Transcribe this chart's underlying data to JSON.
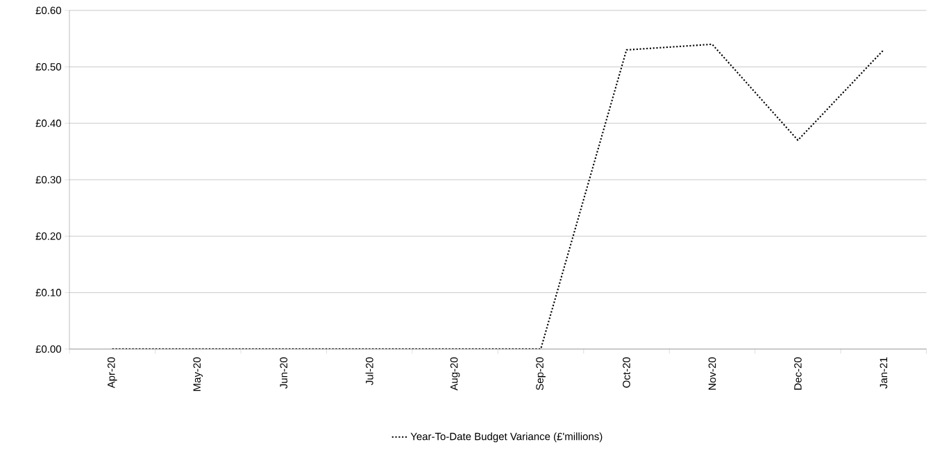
{
  "chart_data": {
    "type": "line",
    "categories": [
      "Apr-20",
      "May-20",
      "Jun-20",
      "Jul-20",
      "Aug-20",
      "Sep-20",
      "Oct-20",
      "Nov-20",
      "Dec-20",
      "Jan-21"
    ],
    "series": [
      {
        "name": "Year-To-Date Budget Variance (£'millions)",
        "color": "#000000",
        "values": [
          0,
          0,
          0,
          0,
          0,
          0,
          0.53,
          0.54,
          0.37,
          0.53
        ]
      }
    ],
    "ylim": [
      0,
      0.6
    ],
    "yticks": [
      {
        "value": 0,
        "label": "£0.00"
      },
      {
        "value": 0.1,
        "label": "£0.10"
      },
      {
        "value": 0.2,
        "label": "£0.20"
      },
      {
        "value": 0.3,
        "label": "£0.30"
      },
      {
        "value": 0.4,
        "label": "£0.40"
      },
      {
        "value": 0.5,
        "label": "£0.50"
      },
      {
        "value": 0.6,
        "label": "£0.60"
      }
    ],
    "grid": "y",
    "legend": "bottom",
    "marker": "none",
    "line_style": "dotted"
  }
}
